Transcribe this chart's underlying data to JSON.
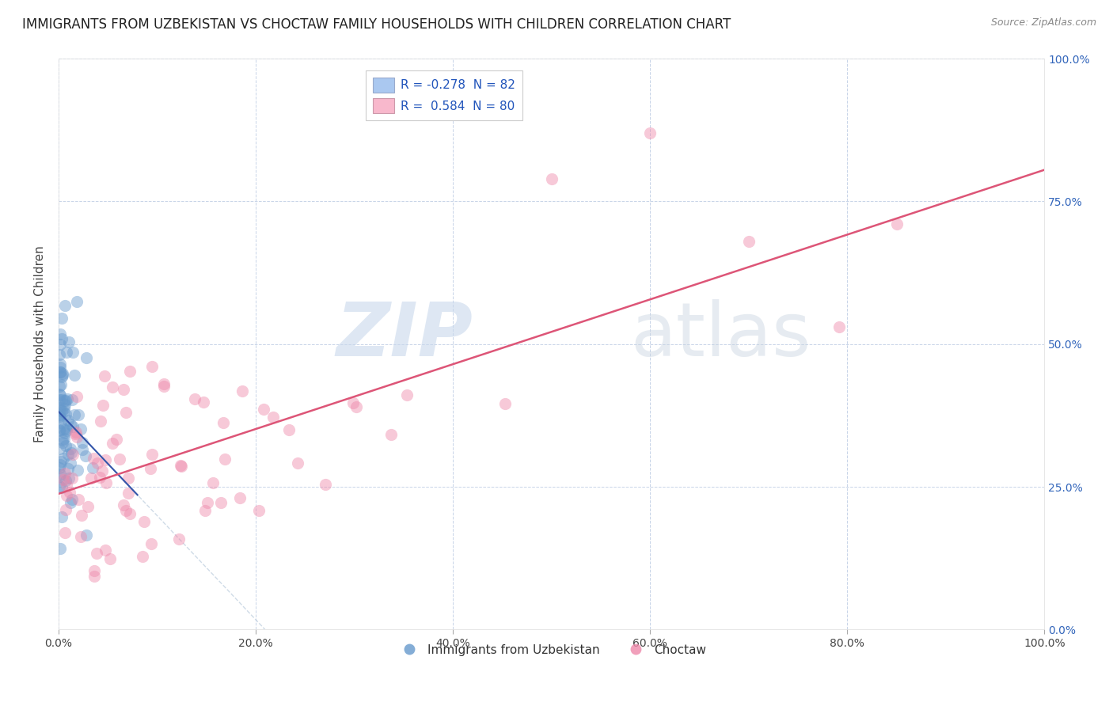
{
  "title": "IMMIGRANTS FROM UZBEKISTAN VS CHOCTAW FAMILY HOUSEHOLDS WITH CHILDREN CORRELATION CHART",
  "source": "Source: ZipAtlas.com",
  "ylabel": "Family Households with Children",
  "watermark_zip": "ZIP",
  "watermark_atlas": "atlas",
  "legend_line1": "R = -0.278  N = 82",
  "legend_line2": "R =  0.584  N = 80",
  "legend_blue_color": "#aac8f0",
  "legend_pink_color": "#f8b8cc",
  "xlim": [
    0,
    100
  ],
  "ylim": [
    0,
    100
  ],
  "background_color": "#ffffff",
  "grid_color": "#c8d4e8",
  "scatter_alpha": 0.45,
  "scatter_size": 120,
  "blue_color": "#6699cc",
  "pink_color": "#ee88aa",
  "blue_line_color": "#3355aa",
  "pink_line_color": "#dd5577",
  "pink_line_dashed_color": "#bbccdd",
  "title_fontsize": 12,
  "axis_label_fontsize": 11,
  "tick_label_fontsize": 10,
  "right_tick_color": "#3366bb"
}
